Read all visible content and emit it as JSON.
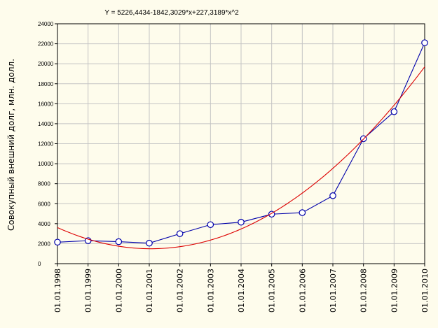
{
  "chart_data": {
    "type": "line",
    "title": "Y = 5226,4434-1842,3029*x+227,3189*x^2",
    "xlabel": "",
    "ylabel": "Совокупный внешний долг, млн. долл.",
    "categories": [
      "01.01.1998",
      "01.01.1999",
      "01.01.2000",
      "01.01.2001",
      "01.01.2002",
      "01.01.2003",
      "01.01.2004",
      "01.01.2005",
      "01.01.2006",
      "01.01.2007",
      "01.01.2008",
      "01.01.2009",
      "01.01.2010"
    ],
    "yticks": [
      "0",
      "2000",
      "4000",
      "6000",
      "8000",
      "10000",
      "12000",
      "14000",
      "16000",
      "18000",
      "20000",
      "22000",
      "24000"
    ],
    "ylim": [
      0,
      24000
    ],
    "grid": true,
    "series": [
      {
        "kind": "observed",
        "color": "#0000aa",
        "marker": "circle",
        "values": [
          2150,
          2300,
          2200,
          2050,
          3000,
          3900,
          4150,
          4950,
          5100,
          6800,
          12500,
          15200,
          22100
        ]
      },
      {
        "kind": "trend",
        "color": "#dd0000",
        "marker": "none",
        "coefficients": [
          5226.4434,
          -1842.3029,
          227.3189
        ],
        "values": [
          3611.46,
          2451.11,
          1745.39,
          1494.31,
          1697.87,
          2356.06,
          3468.89,
          5036.35,
          7058.45,
          9535.18,
          12466.55,
          15852.56,
          19693.2
        ]
      }
    ]
  }
}
